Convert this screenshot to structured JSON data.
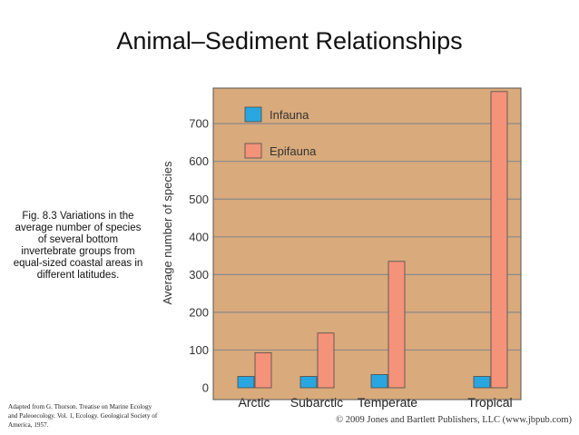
{
  "slide": {
    "title": "Animal–Sediment Relationships",
    "caption": "Fig. 8.3  Variations in the\naverage number of species\nof several bottom\ninvertebrate groups from\nequal-sized coastal areas in\ndifferent latitudes.",
    "credit": "Adapted from G. Thorson. Treatise on Marine Ecology and Paleoecology. Vol. 1, Ecology. Geological Society of America, 1957.",
    "copyright": "© 2009 Jones and Bartlett Publishers, LLC (www.jbpub.com)"
  },
  "chart_data": {
    "type": "bar",
    "title": "",
    "xlabel": "",
    "ylabel": "Average number of species",
    "categories": [
      "Arctic",
      "Subarctic",
      "Temperate",
      "Tropical"
    ],
    "series": [
      {
        "name": "Infauna",
        "color": "#29a6e0",
        "values": [
          30,
          30,
          35,
          30
        ]
      },
      {
        "name": "Epifauna",
        "color": "#f5927a",
        "values": [
          93,
          145,
          335,
          785
        ]
      }
    ],
    "yticks": [
      "0",
      "100",
      "200",
      "300",
      "400",
      "500",
      "600",
      "700"
    ],
    "ylim": [
      0,
      800
    ],
    "grid": true,
    "legend": "top-left",
    "background_color": "#d9aa7c",
    "grid_color": "#8a8a8a"
  }
}
